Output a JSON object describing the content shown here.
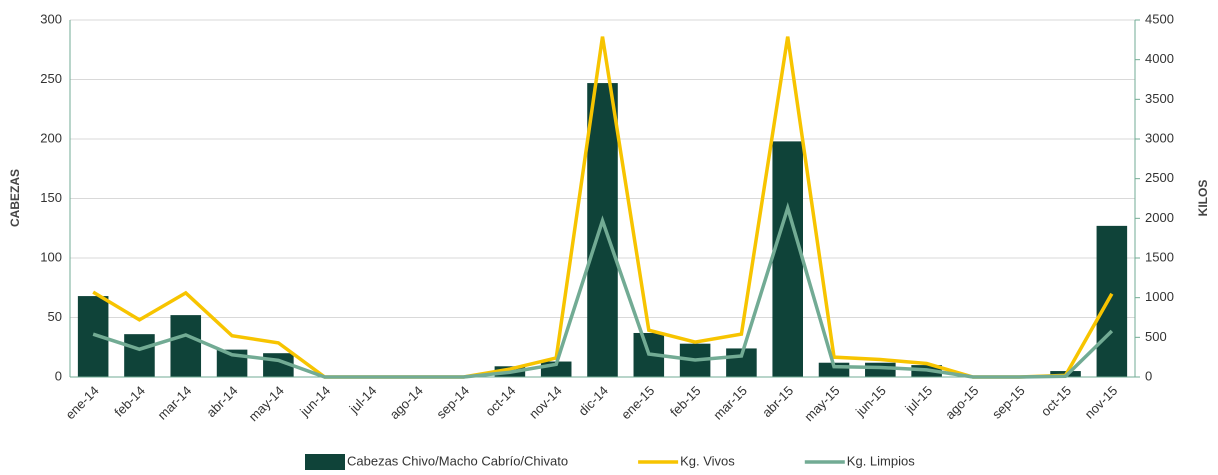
{
  "chart_data": {
    "type": "combo",
    "categories": [
      "ene-14",
      "feb-14",
      "mar-14",
      "abr-14",
      "may-14",
      "jun-14",
      "jul-14",
      "ago-14",
      "sep-14",
      "oct-14",
      "nov-14",
      "dic-14",
      "ene-15",
      "feb-15",
      "mar-15",
      "abr-15",
      "may-15",
      "jun-15",
      "jul-15",
      "ago-15",
      "sep-15",
      "oct-15",
      "nov-15"
    ],
    "series": [
      {
        "name": "Cabezas Chivo/Macho Cabrío/Chivato",
        "type": "bar",
        "color": "#0f4339",
        "axis": "y",
        "values": [
          68,
          36,
          52,
          23,
          20,
          0,
          0,
          0,
          0,
          9,
          13,
          247,
          37,
          28,
          24,
          198,
          12,
          12,
          10,
          0,
          0,
          5,
          127
        ]
      },
      {
        "name": "Kg. Vivos",
        "type": "line",
        "color": "#f7c400",
        "axis": "y2",
        "values": [
          1070,
          720,
          1060,
          520,
          430,
          0,
          0,
          0,
          0,
          100,
          240,
          4290,
          590,
          440,
          540,
          4290,
          250,
          220,
          170,
          0,
          0,
          20,
          1050
        ]
      },
      {
        "name": "Kg. Limpios",
        "type": "line",
        "color": "#72ab94",
        "axis": "y2",
        "values": [
          540,
          350,
          530,
          280,
          210,
          0,
          0,
          0,
          0,
          60,
          160,
          1970,
          290,
          215,
          265,
          2130,
          130,
          120,
          90,
          0,
          0,
          10,
          580
        ]
      }
    ],
    "ylabel": "CABEZAS",
    "y2label": "KILOS",
    "ylim": [
      0,
      300
    ],
    "yticks": [
      0,
      50,
      100,
      150,
      200,
      250,
      300
    ],
    "y2lim": [
      0,
      4500
    ],
    "y2ticks": [
      0,
      500,
      1000,
      1500,
      2000,
      2500,
      3000,
      3500,
      4000,
      4500
    ],
    "grid": true,
    "legend": "bottom"
  }
}
